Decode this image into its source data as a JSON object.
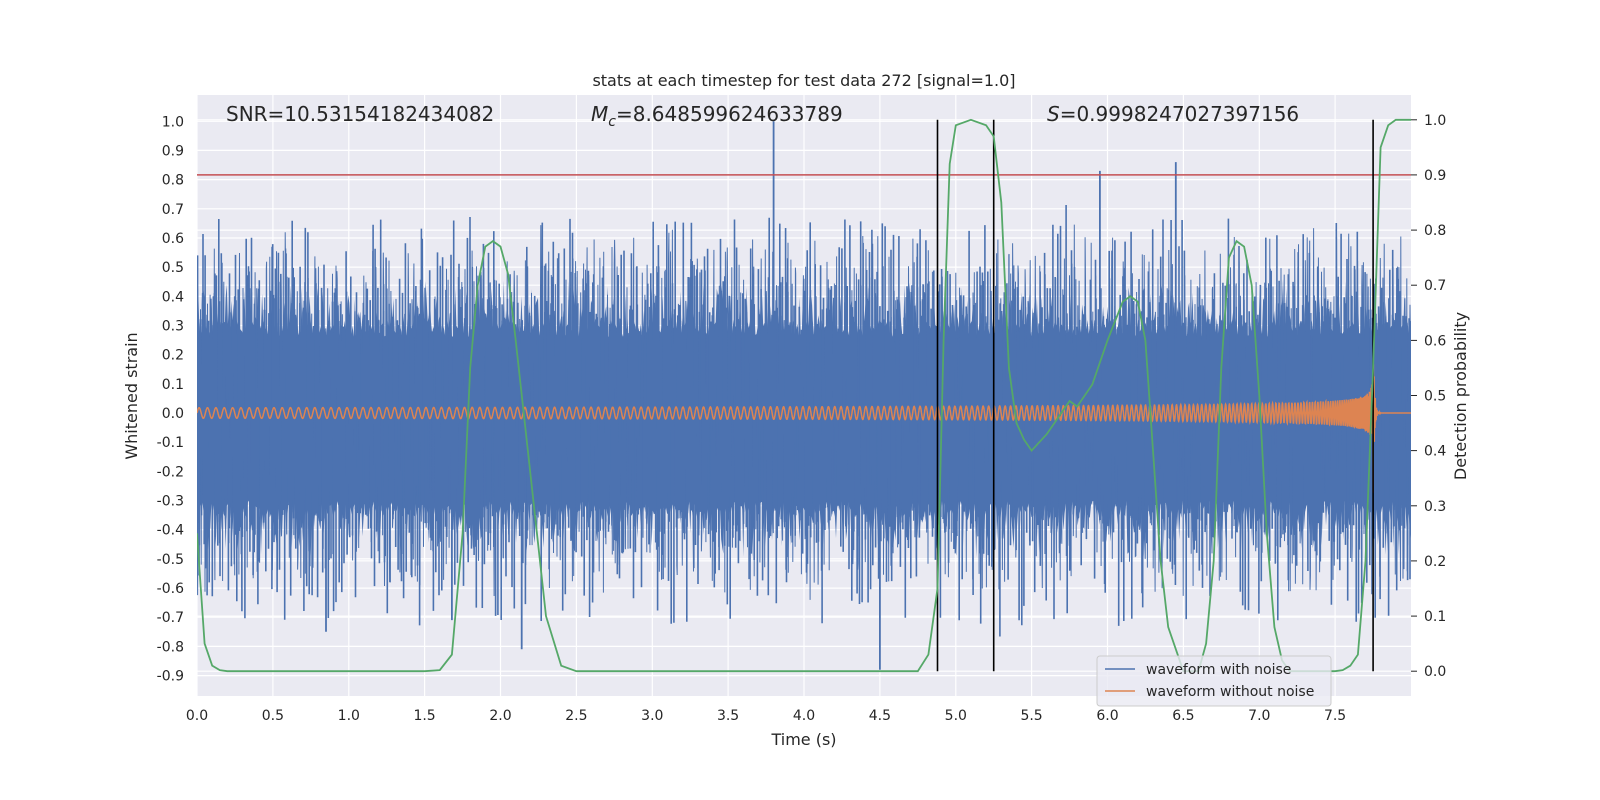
{
  "chart_data": {
    "type": "line",
    "title": "stats at each timestep for test data 272 [signal=1.0]",
    "xlabel": "Time (s)",
    "ylabel": "Whitened strain",
    "y2label": "Detection probability",
    "xlim": [
      0.0,
      8.0
    ],
    "ylim": [
      -0.97,
      1.09
    ],
    "y2lim": [
      -0.045,
      1.045
    ],
    "xticks": [
      "0.0",
      "0.5",
      "1.0",
      "1.5",
      "2.0",
      "2.5",
      "3.0",
      "3.5",
      "4.0",
      "4.5",
      "5.0",
      "5.5",
      "6.0",
      "6.5",
      "7.0",
      "7.5"
    ],
    "yticks": [
      "1.0",
      "0.9",
      "0.8",
      "0.7",
      "0.6",
      "0.5",
      "0.4",
      "0.3",
      "0.2",
      "0.1",
      "0.0",
      "-0.1",
      "-0.2",
      "-0.3",
      "-0.4",
      "-0.5",
      "-0.6",
      "-0.7",
      "-0.8",
      "-0.9"
    ],
    "y2ticks": [
      "1.0",
      "0.9",
      "0.8",
      "0.7",
      "0.6",
      "0.5",
      "0.4",
      "0.3",
      "0.2",
      "0.1",
      "0.0"
    ],
    "grid": true,
    "legend_position": "lower-right",
    "stats": {
      "snr": "SNR=10.53154182434082",
      "mc_symbol": "M",
      "mc_sub": "c",
      "mc_value": "=8.648599624633789",
      "s_symbol": "S",
      "s_value": "=0.9998247027397156"
    },
    "threshold": 0.9,
    "vertical_markers": [
      4.88,
      5.25,
      7.75
    ],
    "merger_time": 7.75,
    "series": [
      {
        "name": "waveform with noise",
        "color": "#4c72b0",
        "axis": "left",
        "envelope_max": 0.72,
        "envelope_min": -0.88,
        "spikes": [
          {
            "x": 0.85,
            "y": -0.75
          },
          {
            "x": 1.68,
            "y": -0.71
          },
          {
            "x": 2.14,
            "y": -0.81
          },
          {
            "x": 3.8,
            "y": 1.0
          },
          {
            "x": 4.5,
            "y": -0.88
          },
          {
            "x": 5.95,
            "y": 0.83
          },
          {
            "x": 6.45,
            "y": 0.86
          }
        ]
      },
      {
        "name": "waveform without noise",
        "color": "#dd8452",
        "axis": "left",
        "amplitude_start": 0.02,
        "amplitude_end": 0.3
      },
      {
        "name": "Detection probability",
        "color": "#55a868",
        "axis": "right",
        "x": [
          0.0,
          0.05,
          0.1,
          0.15,
          0.2,
          0.4,
          0.8,
          1.2,
          1.5,
          1.6,
          1.68,
          1.75,
          1.8,
          1.85,
          1.9,
          1.95,
          2.0,
          2.05,
          2.1,
          2.2,
          2.3,
          2.4,
          2.5,
          3.0,
          3.5,
          4.0,
          4.5,
          4.75,
          4.82,
          4.88,
          4.92,
          4.96,
          5.0,
          5.1,
          5.2,
          5.25,
          5.3,
          5.35,
          5.4,
          5.45,
          5.5,
          5.6,
          5.7,
          5.75,
          5.8,
          5.9,
          6.0,
          6.1,
          6.15,
          6.2,
          6.25,
          6.3,
          6.35,
          6.4,
          6.5,
          6.55,
          6.6,
          6.65,
          6.7,
          6.75,
          6.8,
          6.85,
          6.9,
          6.95,
          7.0,
          7.05,
          7.1,
          7.15,
          7.2,
          7.5,
          7.55,
          7.6,
          7.65,
          7.7,
          7.75,
          7.8,
          7.85,
          7.9,
          7.95,
          8.0
        ],
        "y": [
          0.25,
          0.05,
          0.01,
          0.002,
          0.0,
          0.0,
          0.0,
          0.0,
          0.0,
          0.002,
          0.03,
          0.25,
          0.55,
          0.7,
          0.77,
          0.78,
          0.77,
          0.72,
          0.6,
          0.35,
          0.1,
          0.01,
          0.0,
          0.0,
          0.0,
          0.0,
          0.0,
          0.0,
          0.03,
          0.15,
          0.6,
          0.92,
          0.99,
          1.0,
          0.99,
          0.97,
          0.85,
          0.55,
          0.45,
          0.42,
          0.4,
          0.43,
          0.47,
          0.49,
          0.48,
          0.52,
          0.6,
          0.67,
          0.68,
          0.67,
          0.6,
          0.4,
          0.2,
          0.08,
          0.0,
          0.0,
          0.0,
          0.05,
          0.2,
          0.55,
          0.75,
          0.78,
          0.77,
          0.7,
          0.5,
          0.25,
          0.08,
          0.02,
          0.0,
          0.0,
          0.002,
          0.01,
          0.03,
          0.2,
          0.55,
          0.95,
          0.99,
          1.0,
          1.0,
          1.0
        ]
      }
    ]
  }
}
